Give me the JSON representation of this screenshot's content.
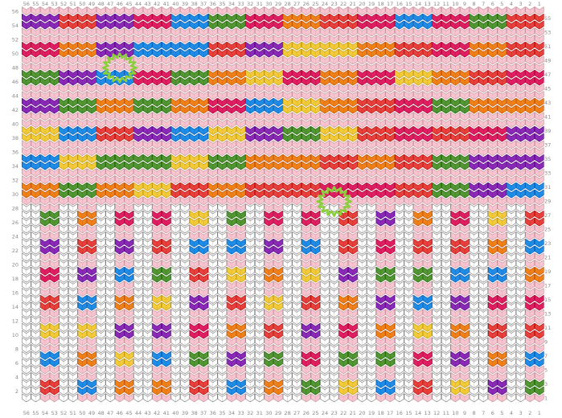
{
  "chart_data": {
    "type": "knitting_chart",
    "columns": 56,
    "rows": 56,
    "column_numbers_right_to_left": true,
    "row_numbers_bottom_to_top": true,
    "background_stitch_color": "#f7c4cf",
    "empty_stitch_color": "#ffffff",
    "empty_stitch_stroke": "#777777",
    "palette": {
      "R": "#e8403c",
      "M": "#e01e63",
      "O": "#f08118",
      "Y": "#f3ca3a",
      "G": "#539634",
      "B": "#1f8ce6",
      "P": "#8c2ab8"
    },
    "block_width": 4,
    "block_height": 4,
    "upper_block_grid": [
      [
        "P",
        "R",
        "P",
        "M",
        "B",
        "G",
        "M",
        "O",
        "R",
        "M",
        "B",
        "M",
        "G",
        "R"
      ],
      [
        "M",
        "O",
        "P",
        "B",
        "B",
        "R",
        "P",
        "Y",
        "Y",
        "O",
        "R",
        "M",
        "O",
        "R"
      ],
      [
        "G",
        "P",
        "B",
        "M",
        "G",
        "O",
        "Y",
        "M",
        "O",
        "M",
        "Y",
        "O",
        "R",
        "M"
      ],
      [
        "P",
        "G",
        "O",
        "G",
        "O",
        "M",
        "B",
        "Y",
        "O",
        "R",
        "M",
        "G",
        "O",
        "O"
      ],
      [
        "Y",
        "B",
        "R",
        "P",
        "B",
        "Y",
        "P",
        "G",
        "Y",
        "R",
        "M",
        "R",
        "M",
        "P"
      ],
      [
        "B",
        "Y",
        "G",
        "G",
        "Y",
        "G",
        "O",
        "O",
        "R",
        "O",
        "R",
        "G",
        "P",
        "P"
      ],
      [
        "O",
        "G",
        "O",
        "Y",
        "R",
        "O",
        "R",
        "R",
        "M",
        "M",
        "R",
        "G",
        "P",
        "B"
      ]
    ],
    "lower_rows": 28,
    "lower_block_height": 4,
    "stripes": [
      {
        "first_column": 1,
        "last_column": 2,
        "colors": [
          "G",
          "B",
          "R",
          "M",
          "O",
          "B",
          "R"
        ]
      },
      {
        "first_column": 5,
        "last_column": 6,
        "colors": [
          "Y",
          "P",
          "O",
          "R",
          "M",
          "B",
          "O"
        ]
      },
      {
        "first_column": 9,
        "last_column": 10,
        "colors": [
          "Y",
          "P",
          "O",
          "P",
          "B",
          "R",
          "M"
        ]
      },
      {
        "first_column": 13,
        "last_column": 14,
        "colors": [
          "O",
          "R",
          "M",
          "Y",
          "B",
          "G",
          "R"
        ]
      },
      {
        "first_column": 17,
        "last_column": 18,
        "colors": [
          "B",
          "G",
          "O",
          "P",
          "G",
          "M",
          "P"
        ]
      },
      {
        "first_column": 21,
        "last_column": 22,
        "colors": [
          "R",
          "Y",
          "G",
          "M",
          "O",
          "P",
          "R"
        ]
      },
      {
        "first_column": 25,
        "last_column": 26,
        "colors": [
          "G",
          "M",
          "P",
          "R",
          "Y",
          "B",
          "M"
        ]
      },
      {
        "first_column": 29,
        "last_column": 30,
        "colors": [
          "M",
          "O",
          "G",
          "R",
          "Y",
          "O",
          "P"
        ]
      },
      {
        "first_column": 33,
        "last_column": 34,
        "colors": [
          "B",
          "P",
          "O",
          "R",
          "Y",
          "B",
          "G"
        ]
      },
      {
        "first_column": 37,
        "last_column": 38,
        "colors": [
          "Y",
          "R",
          "G",
          "M",
          "P",
          "R",
          "B"
        ]
      },
      {
        "first_column": 41,
        "last_column": 42,
        "colors": [
          "O",
          "B",
          "P",
          "Y",
          "G",
          "R",
          "M"
        ]
      },
      {
        "first_column": 45,
        "last_column": 46,
        "colors": [
          "M",
          "O",
          "Y",
          "P",
          "O",
          "B",
          "P"
        ]
      },
      {
        "first_column": 49,
        "last_column": 50,
        "colors": [
          "B",
          "O",
          "Y",
          "B",
          "P",
          "R",
          "O"
        ]
      },
      {
        "first_column": 53,
        "last_column": 54,
        "colors": [
          "G",
          "R",
          "B",
          "Y",
          "R",
          "M",
          "P"
        ]
      }
    ],
    "markers": [
      {
        "row": 48,
        "column": 46
      },
      {
        "row": 29,
        "column": 23
      }
    ],
    "marker_color": "#8ccf3c"
  }
}
